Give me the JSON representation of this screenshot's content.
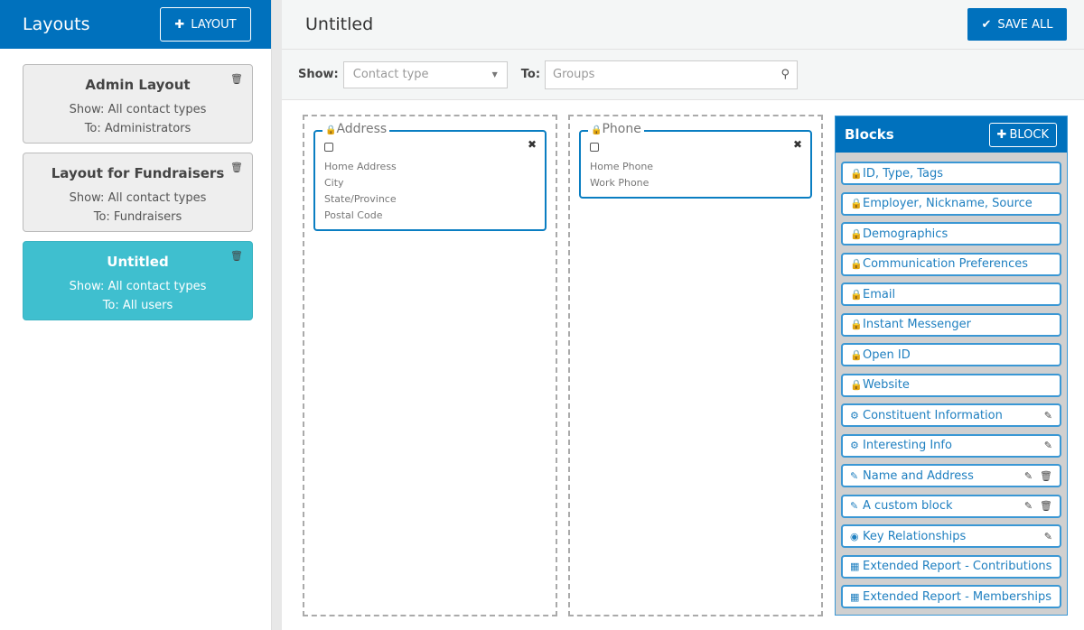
{
  "sidebar": {
    "title": "Layouts",
    "add_label": "LAYOUT",
    "layouts": [
      {
        "title": "Admin Layout",
        "show": "Show: All contact types",
        "to": "To: Administrators",
        "selected": false
      },
      {
        "title": "Layout for Fundraisers",
        "show": "Show: All contact types",
        "to": "To: Fundraisers",
        "selected": false
      },
      {
        "title": "Untitled",
        "show": "Show: All contact types",
        "to": "To: All users",
        "selected": true
      }
    ]
  },
  "header": {
    "title": "Untitled",
    "save_label": "SAVE ALL"
  },
  "filters": {
    "show_label": "Show:",
    "show_placeholder": "Contact type",
    "to_label": "To:",
    "to_placeholder": "Groups"
  },
  "columns": [
    {
      "block": {
        "title": "Address",
        "fields": [
          "Home Address",
          "City",
          "State/Province",
          "Postal Code"
        ]
      }
    },
    {
      "block": {
        "title": "Phone",
        "fields": [
          "Home Phone",
          "Work Phone"
        ]
      }
    }
  ],
  "blocks_panel": {
    "title": "Blocks",
    "add_label": "BLOCK",
    "items": [
      {
        "label": "ID, Type, Tags",
        "icon": "lock"
      },
      {
        "label": "Employer, Nickname, Source",
        "icon": "lock"
      },
      {
        "label": "Demographics",
        "icon": "lock"
      },
      {
        "label": "Communication Preferences",
        "icon": "lock"
      },
      {
        "label": "Email",
        "icon": "lock"
      },
      {
        "label": "Instant Messenger",
        "icon": "lock"
      },
      {
        "label": "Open ID",
        "icon": "lock"
      },
      {
        "label": "Website",
        "icon": "lock"
      },
      {
        "label": "Constituent Information",
        "icon": "gear",
        "edit": true
      },
      {
        "label": "Interesting Info",
        "icon": "gear",
        "edit": true
      },
      {
        "label": "Name and Address",
        "icon": "edit",
        "edit": true,
        "delete": true
      },
      {
        "label": "A custom block",
        "icon": "edit",
        "edit": true,
        "delete": true
      },
      {
        "label": "Key Relationships",
        "icon": "user-circle",
        "edit": true
      },
      {
        "label": "Extended Report - Contributions",
        "icon": "table"
      },
      {
        "label": "Extended Report - Memberships",
        "icon": "table"
      }
    ]
  },
  "colors": {
    "primary": "#0071bd",
    "selected": "#3fbfcf"
  }
}
